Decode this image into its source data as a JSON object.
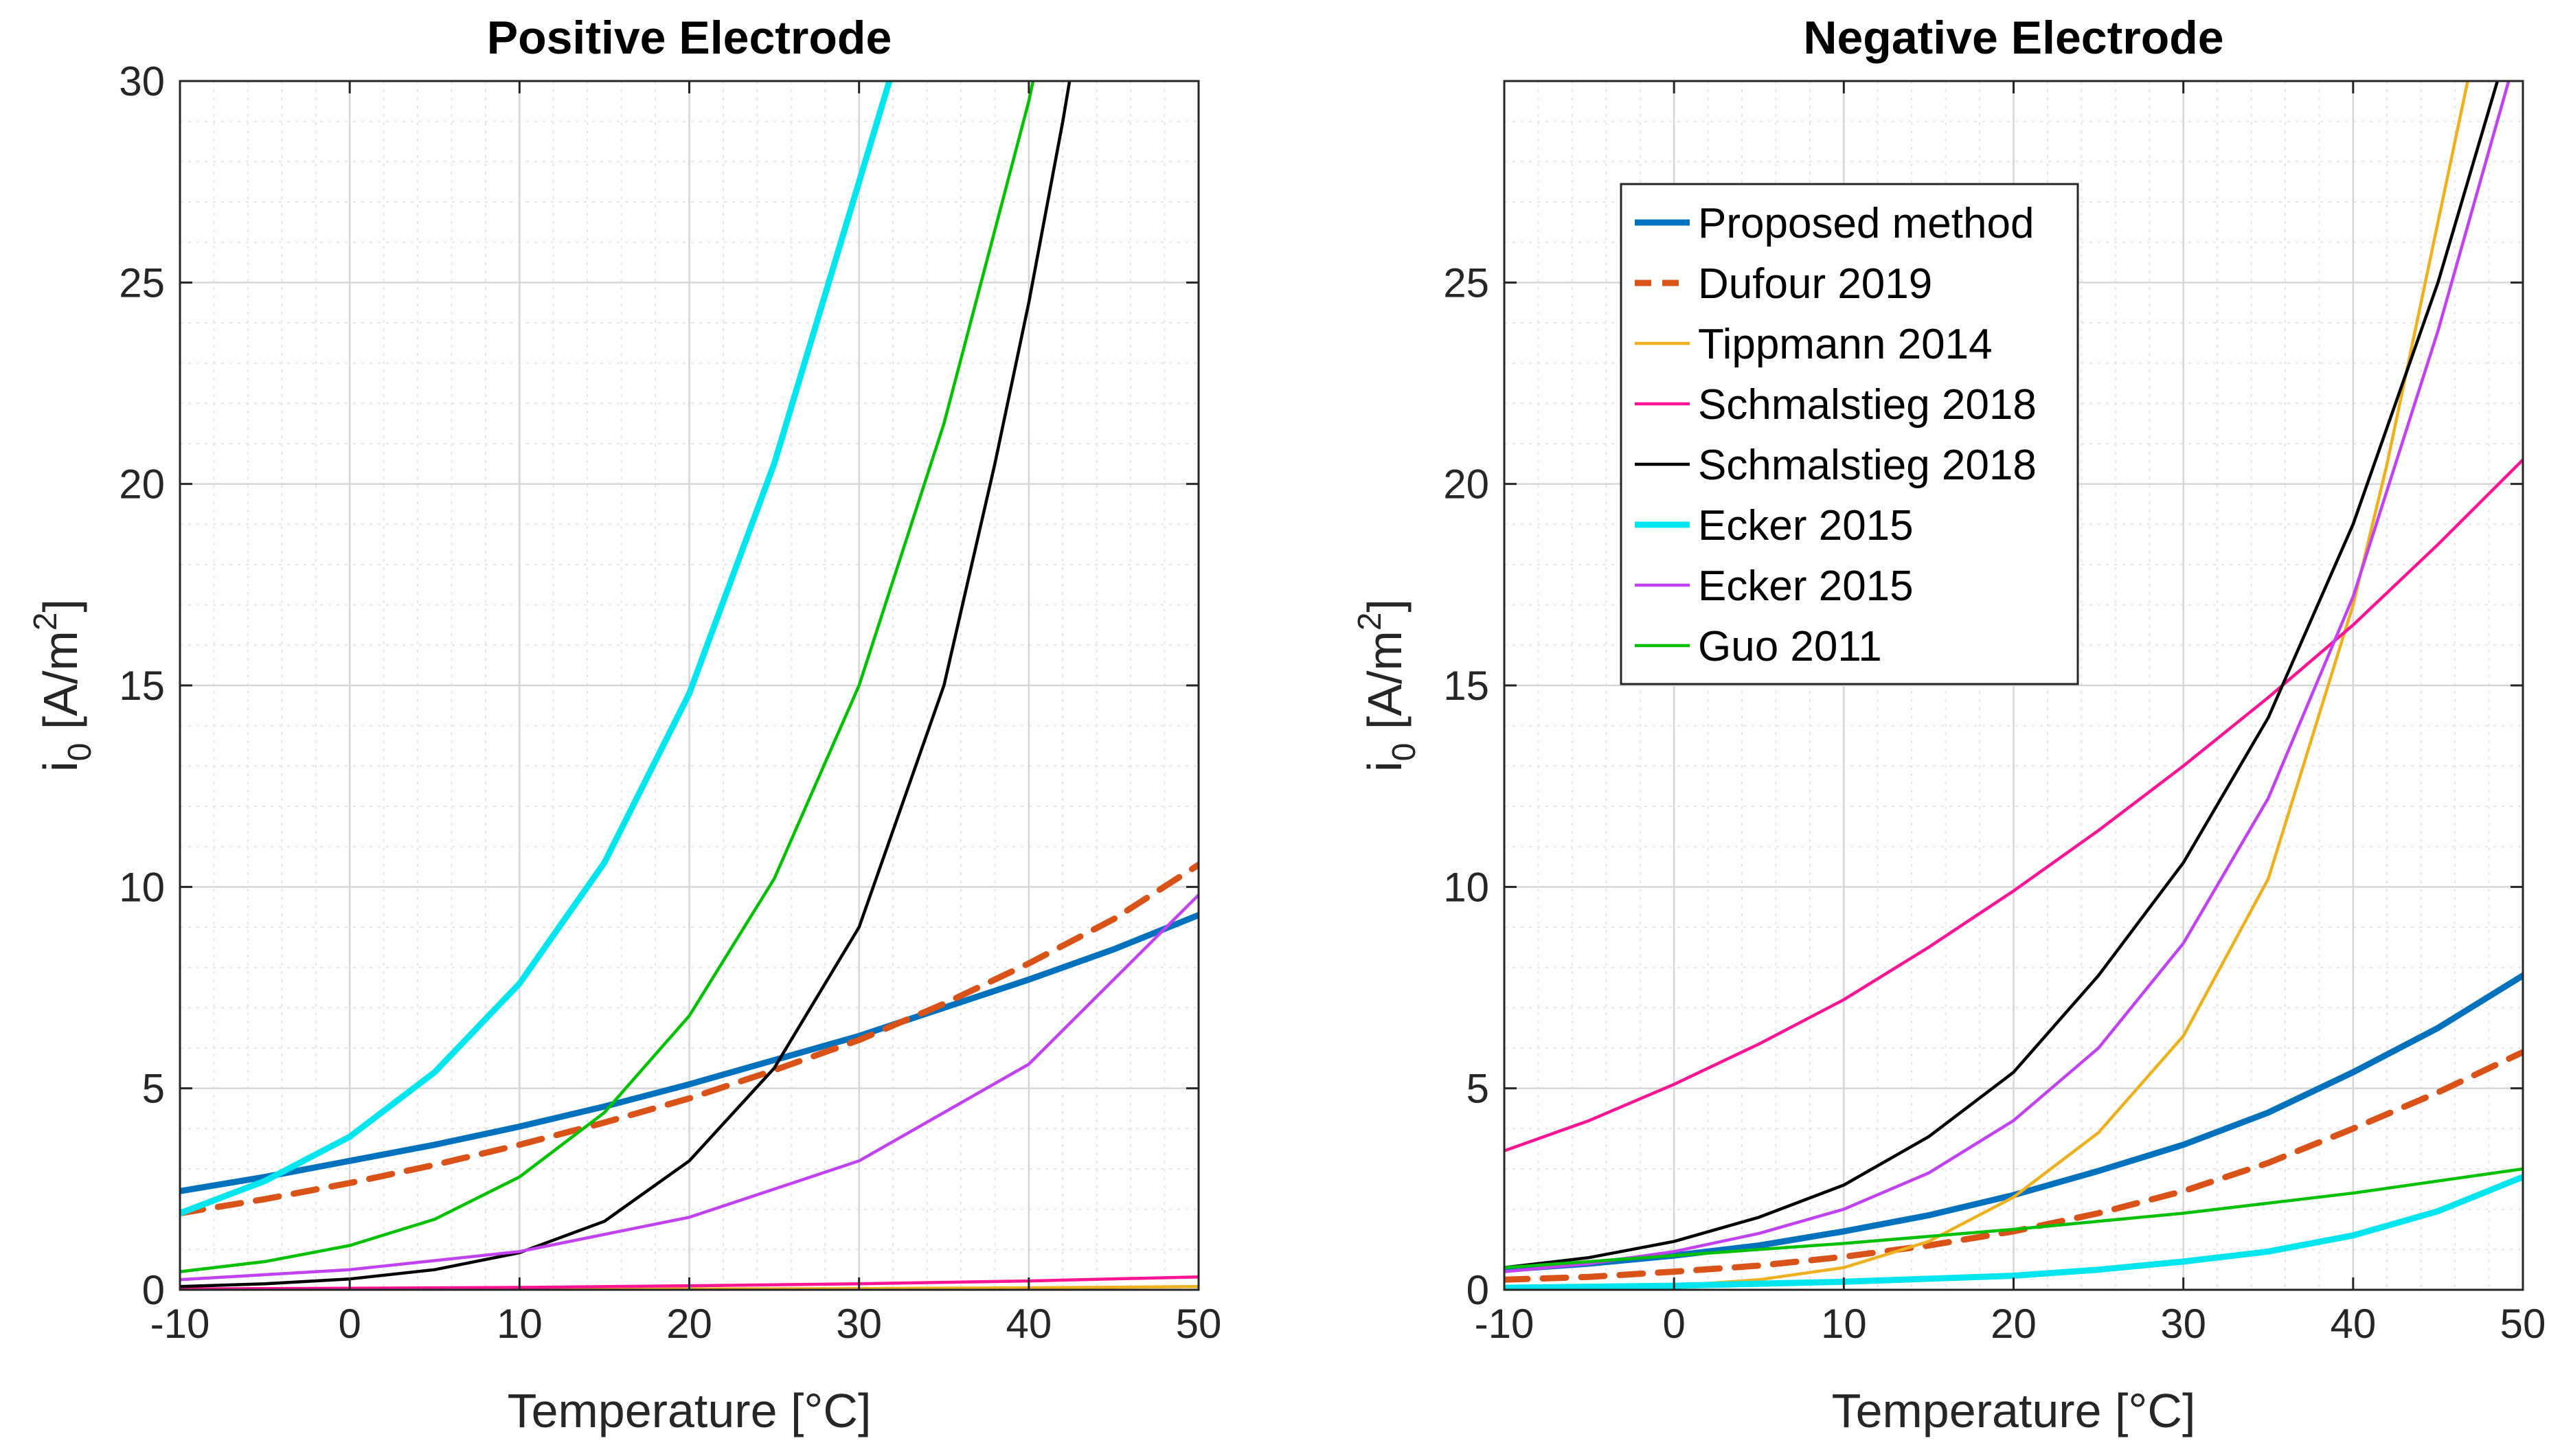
{
  "chart_data": [
    {
      "type": "line",
      "title": "Positive Electrode",
      "xlabel": "Temperature [°C]",
      "ylabel_main": "i",
      "ylabel_sub": "0",
      "ylabel_unit_pre": " [A/m",
      "ylabel_unit_sup": "2",
      "ylabel_unit_post": "]",
      "xlim": [
        -10,
        50
      ],
      "ylim": [
        0,
        30
      ],
      "xticks": [
        -10,
        0,
        10,
        20,
        30,
        40,
        50
      ],
      "yticks": [
        0,
        5,
        10,
        15,
        20,
        25,
        30
      ],
      "grid": true,
      "minor_grid": true,
      "series": [
        {
          "name": "Proposed method",
          "color": "#0072BD",
          "style": "solid",
          "weight": "thick",
          "x": [
            -10,
            -5,
            0,
            5,
            10,
            15,
            20,
            25,
            30,
            35,
            40,
            45,
            50
          ],
          "y": [
            2.45,
            2.8,
            3.2,
            3.6,
            4.05,
            4.55,
            5.1,
            5.7,
            6.3,
            7.0,
            7.7,
            8.45,
            9.3
          ]
        },
        {
          "name": "Dufour 2019",
          "color": "#D95319",
          "style": "dashed",
          "weight": "thick",
          "x": [
            -10,
            -5,
            0,
            5,
            10,
            15,
            20,
            25,
            30,
            35,
            40,
            45,
            50
          ],
          "y": [
            1.9,
            2.25,
            2.65,
            3.1,
            3.6,
            4.15,
            4.75,
            5.45,
            6.2,
            7.1,
            8.1,
            9.2,
            10.55
          ]
        },
        {
          "name": "Tippmann 2014",
          "color": "#EDB120",
          "style": "solid",
          "weight": "normal",
          "x": [
            -10,
            0,
            10,
            20,
            30,
            40,
            50
          ],
          "y": [
            0.0,
            0.0,
            0.01,
            0.02,
            0.03,
            0.05,
            0.08
          ]
        },
        {
          "name": "Schmalstieg 2018",
          "color": "#FF1493",
          "style": "solid",
          "weight": "normal",
          "x": [
            -10,
            0,
            10,
            20,
            30,
            40,
            50
          ],
          "y": [
            0.02,
            0.04,
            0.06,
            0.1,
            0.15,
            0.22,
            0.32
          ]
        },
        {
          "name": "Schmalstieg 2018",
          "color": "#000000",
          "style": "solid",
          "weight": "normal",
          "x": [
            -10,
            -5,
            0,
            5,
            10,
            15,
            20,
            25,
            30,
            35,
            38,
            40,
            42,
            43
          ],
          "y": [
            0.08,
            0.15,
            0.27,
            0.5,
            0.92,
            1.7,
            3.2,
            5.5,
            9.0,
            15.0,
            20.5,
            24.5,
            29.0,
            31.5
          ]
        },
        {
          "name": "Ecker 2015",
          "color": "#00E5EE",
          "style": "solid",
          "weight": "thick",
          "x": [
            -10,
            -5,
            0,
            5,
            10,
            15,
            20,
            25,
            30,
            32.5
          ],
          "y": [
            1.9,
            2.7,
            3.8,
            5.4,
            7.6,
            10.6,
            14.8,
            20.5,
            27.5,
            31.0
          ]
        },
        {
          "name": "Ecker 2015",
          "color": "#C042F0",
          "style": "solid",
          "weight": "normal",
          "x": [
            -10,
            0,
            10,
            20,
            30,
            40,
            50
          ],
          "y": [
            0.25,
            0.5,
            0.95,
            1.8,
            3.2,
            5.6,
            9.8
          ]
        },
        {
          "name": "Guo 2011",
          "color": "#00C000",
          "style": "solid",
          "weight": "normal",
          "x": [
            -10,
            -5,
            0,
            5,
            10,
            15,
            20,
            25,
            30,
            35,
            40,
            41
          ],
          "y": [
            0.45,
            0.7,
            1.1,
            1.75,
            2.8,
            4.4,
            6.8,
            10.2,
            15.0,
            21.5,
            29.5,
            31.5
          ]
        }
      ]
    },
    {
      "type": "line",
      "title": "Negative Electrode",
      "xlabel": "Temperature [°C]",
      "ylabel_main": "i",
      "ylabel_sub": "0",
      "ylabel_unit_pre": " [A/m",
      "ylabel_unit_sup": "2",
      "ylabel_unit_post": "]",
      "xlim": [
        -10,
        50
      ],
      "ylim": [
        0,
        30
      ],
      "xticks": [
        -10,
        0,
        10,
        20,
        30,
        40,
        50
      ],
      "yticks": [
        0,
        5,
        10,
        15,
        20,
        25
      ],
      "grid": true,
      "minor_grid": true,
      "legend": {
        "location": "top-left",
        "entries": [
          {
            "label": "Proposed method",
            "color": "#0072BD",
            "style": "solid",
            "weight": "thick"
          },
          {
            "label": "Dufour 2019",
            "color": "#D95319",
            "style": "dashed",
            "weight": "thick"
          },
          {
            "label": "Tippmann 2014",
            "color": "#EDB120",
            "style": "solid",
            "weight": "normal"
          },
          {
            "label": "Schmalstieg 2018",
            "color": "#FF1493",
            "style": "solid",
            "weight": "normal"
          },
          {
            "label": "Schmalstieg 2018",
            "color": "#000000",
            "style": "solid",
            "weight": "normal"
          },
          {
            "label": "Ecker 2015",
            "color": "#00E5EE",
            "style": "solid",
            "weight": "thick"
          },
          {
            "label": "Ecker 2015",
            "color": "#C042F0",
            "style": "solid",
            "weight": "normal"
          },
          {
            "label": "Guo 2011",
            "color": "#00C000",
            "style": "solid",
            "weight": "normal"
          }
        ]
      },
      "series": [
        {
          "name": "Proposed method",
          "color": "#0072BD",
          "style": "solid",
          "weight": "thick",
          "x": [
            -10,
            -5,
            0,
            5,
            10,
            15,
            20,
            25,
            30,
            35,
            40,
            45,
            50
          ],
          "y": [
            0.5,
            0.65,
            0.85,
            1.1,
            1.45,
            1.85,
            2.35,
            2.95,
            3.6,
            4.4,
            5.4,
            6.5,
            7.8
          ]
        },
        {
          "name": "Dufour 2019",
          "color": "#D95319",
          "style": "dashed",
          "weight": "thick",
          "x": [
            -10,
            -5,
            0,
            5,
            10,
            15,
            20,
            25,
            30,
            35,
            40,
            45,
            50
          ],
          "y": [
            0.25,
            0.32,
            0.45,
            0.6,
            0.82,
            1.1,
            1.45,
            1.9,
            2.45,
            3.15,
            4.0,
            4.9,
            5.9
          ]
        },
        {
          "name": "Tippmann 2014",
          "color": "#EDB120",
          "style": "solid",
          "weight": "normal",
          "x": [
            -10,
            0,
            5,
            10,
            15,
            20,
            25,
            30,
            35,
            40,
            42,
            44,
            46,
            47.5
          ],
          "y": [
            0.0,
            0.1,
            0.25,
            0.55,
            1.2,
            2.3,
            3.9,
            6.3,
            10.2,
            17.0,
            20.5,
            24.5,
            28.5,
            31.5
          ]
        },
        {
          "name": "Schmalstieg 2018",
          "color": "#FF1493",
          "style": "solid",
          "weight": "normal",
          "x": [
            -10,
            -5,
            0,
            5,
            10,
            15,
            20,
            25,
            30,
            35,
            40,
            45,
            50
          ],
          "y": [
            3.45,
            4.2,
            5.1,
            6.1,
            7.2,
            8.5,
            9.9,
            11.4,
            13.0,
            14.7,
            16.5,
            18.5,
            20.6
          ]
        },
        {
          "name": "Schmalstieg 2018",
          "color": "#000000",
          "style": "solid",
          "weight": "normal",
          "x": [
            -10,
            -5,
            0,
            5,
            10,
            15,
            20,
            25,
            30,
            35,
            40,
            45,
            48.5
          ],
          "y": [
            0.55,
            0.8,
            1.2,
            1.8,
            2.6,
            3.8,
            5.4,
            7.8,
            10.6,
            14.2,
            19.0,
            25.0,
            30.0
          ]
        },
        {
          "name": "Ecker 2015",
          "color": "#00E5EE",
          "style": "solid",
          "weight": "thick",
          "x": [
            -10,
            0,
            10,
            20,
            25,
            30,
            35,
            40,
            45,
            50
          ],
          "y": [
            0.05,
            0.1,
            0.2,
            0.35,
            0.5,
            0.7,
            0.95,
            1.35,
            1.95,
            2.8
          ]
        },
        {
          "name": "Ecker 2015",
          "color": "#C042F0",
          "style": "solid",
          "weight": "normal",
          "x": [
            -10,
            -5,
            0,
            5,
            10,
            15,
            20,
            25,
            30,
            35,
            40,
            45,
            49.5
          ],
          "y": [
            0.45,
            0.65,
            0.95,
            1.4,
            2.0,
            2.9,
            4.2,
            6.0,
            8.6,
            12.2,
            17.2,
            23.8,
            30.5
          ]
        },
        {
          "name": "Guo 2011",
          "color": "#00C000",
          "style": "solid",
          "weight": "normal",
          "x": [
            -10,
            0,
            10,
            20,
            30,
            40,
            50
          ],
          "y": [
            0.55,
            0.85,
            1.15,
            1.5,
            1.9,
            2.4,
            3.0
          ]
        }
      ]
    }
  ]
}
